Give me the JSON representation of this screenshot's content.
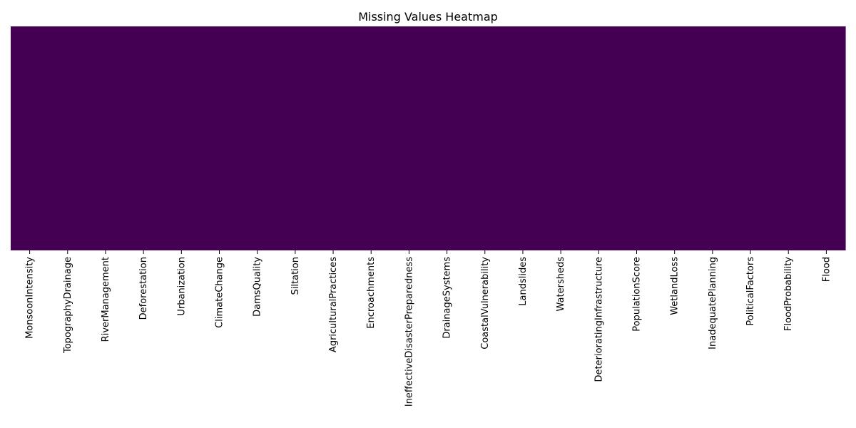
{
  "chart_data": {
    "type": "heatmap",
    "title": "Missing Values Heatmap",
    "xlabel": "",
    "ylabel": "",
    "columns": [
      "MonsoonIntensity",
      "TopographyDrainage",
      "RiverManagement",
      "Deforestation",
      "Urbanization",
      "ClimateChange",
      "DamsQuality",
      "Siltation",
      "AgriculturalPractices",
      "Encroachments",
      "IneffectiveDisasterPreparedness",
      "DrainageSystems",
      "CoastalVulnerability",
      "Landslides",
      "Watersheds",
      "DeterioratingInfrastructure",
      "PopulationScore",
      "WetlandLoss",
      "InadequatePlanning",
      "PoliticalFactors",
      "FloodProbability",
      "Flood"
    ],
    "missing_count": [
      0,
      0,
      0,
      0,
      0,
      0,
      0,
      0,
      0,
      0,
      0,
      0,
      0,
      0,
      0,
      0,
      0,
      0,
      0,
      0,
      0,
      0
    ],
    "colormap": "viridis",
    "cell_color_no_missing": "#440154",
    "yticks_shown": false,
    "colorbar": false,
    "grid": false
  }
}
